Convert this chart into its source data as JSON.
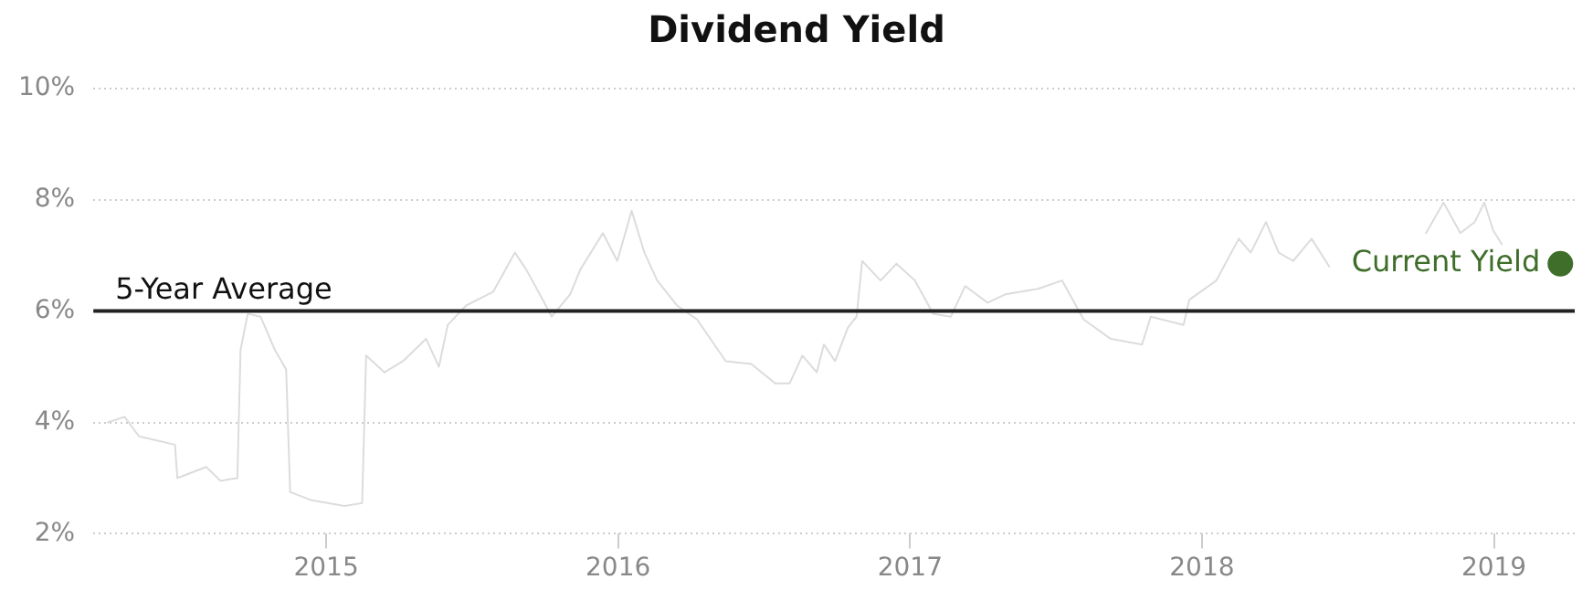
{
  "chart_data": {
    "type": "line",
    "title": "Dividend Yield",
    "xlim": [
      "2014-03-16",
      "2019-04-12"
    ],
    "xticks": [
      "2015",
      "2016",
      "2017",
      "2018",
      "2019"
    ],
    "ylim": [
      2,
      10
    ],
    "yticks": [
      {
        "value": 2,
        "label": "2%"
      },
      {
        "value": 4,
        "label": "4%"
      },
      {
        "value": 6,
        "label": "6%"
      },
      {
        "value": 8,
        "label": "8%"
      },
      {
        "value": 10,
        "label": "10%"
      }
    ],
    "grid": "y",
    "legend": false,
    "ref_lines": [
      {
        "axis": "y",
        "value": 6,
        "label": "5-Year Average",
        "color": "#222222"
      }
    ],
    "series": [
      {
        "color": "#dcdcdc",
        "marker": "none",
        "x": [
          "2014-04-03",
          "2014-04-24",
          "2014-05-12",
          "2014-06-26",
          "2014-06-29",
          "2014-08-04",
          "2014-08-22",
          "2014-09-12",
          "2014-09-16",
          "2014-09-25",
          "2014-10-11",
          "2014-10-29",
          "2014-11-12",
          "2014-11-17",
          "2014-12-14",
          "2015-01-24",
          "2015-02-15",
          "2015-02-20",
          "2015-03-15",
          "2015-04-07",
          "2015-05-06",
          "2015-05-22",
          "2015-06-02",
          "2015-06-25",
          "2015-07-29",
          "2015-08-25",
          "2015-09-08",
          "2015-09-29",
          "2015-10-10",
          "2015-11-02",
          "2015-11-15",
          "2015-12-13",
          "2015-12-31",
          "2016-01-18",
          "2016-02-03",
          "2016-02-19",
          "2016-03-15",
          "2016-04-09",
          "2016-05-15",
          "2016-06-16",
          "2016-07-16",
          "2016-08-03",
          "2016-08-19",
          "2016-09-06",
          "2016-09-15",
          "2016-09-29",
          "2016-10-15",
          "2016-10-26",
          "2016-11-02",
          "2016-11-25",
          "2016-12-15",
          "2017-01-07",
          "2017-01-30",
          "2017-02-21",
          "2017-03-11",
          "2017-04-08",
          "2017-04-30",
          "2017-06-10",
          "2017-07-10",
          "2017-08-06",
          "2017-09-09",
          "2017-10-18",
          "2017-10-29",
          "2017-12-09",
          "2017-12-16",
          "2018-01-19",
          "2018-02-16",
          "2018-03-03",
          "2018-03-22",
          "2018-04-07",
          "2018-04-25",
          "2018-05-18",
          "2018-06-09",
          "2018-08-01",
          "2018-10-08",
          "2018-10-30",
          "2018-11-20",
          "2018-12-08",
          "2018-12-20",
          "2018-12-31",
          "2019-01-11"
        ],
        "values": [
          4.0,
          4.1,
          3.75,
          3.6,
          3.0,
          3.2,
          2.95,
          3.0,
          5.3,
          5.95,
          5.9,
          5.3,
          4.95,
          2.75,
          2.6,
          2.5,
          2.55,
          5.2,
          4.9,
          5.1,
          5.5,
          5.0,
          5.75,
          6.1,
          6.35,
          7.05,
          6.75,
          6.2,
          5.9,
          6.3,
          6.75,
          7.4,
          6.9,
          7.8,
          7.05,
          6.55,
          6.1,
          5.85,
          5.1,
          5.05,
          4.7,
          4.7,
          5.2,
          4.9,
          5.4,
          5.1,
          5.7,
          5.9,
          6.9,
          6.55,
          6.85,
          6.55,
          5.95,
          5.9,
          6.45,
          6.15,
          6.3,
          6.4,
          6.55,
          5.85,
          5.5,
          5.4,
          5.9,
          5.75,
          6.2,
          6.55,
          7.3,
          7.05,
          7.6,
          7.05,
          6.9,
          7.3,
          6.8,
          null,
          7.4,
          7.95,
          7.4,
          7.6,
          7.95,
          7.45,
          7.2
        ]
      },
      {
        "type": "scatter",
        "name": "Current Yield",
        "color": "#3f6e2a",
        "marker": "circle",
        "x": [
          "2019-03-25"
        ],
        "values": [
          6.85
        ]
      }
    ]
  }
}
